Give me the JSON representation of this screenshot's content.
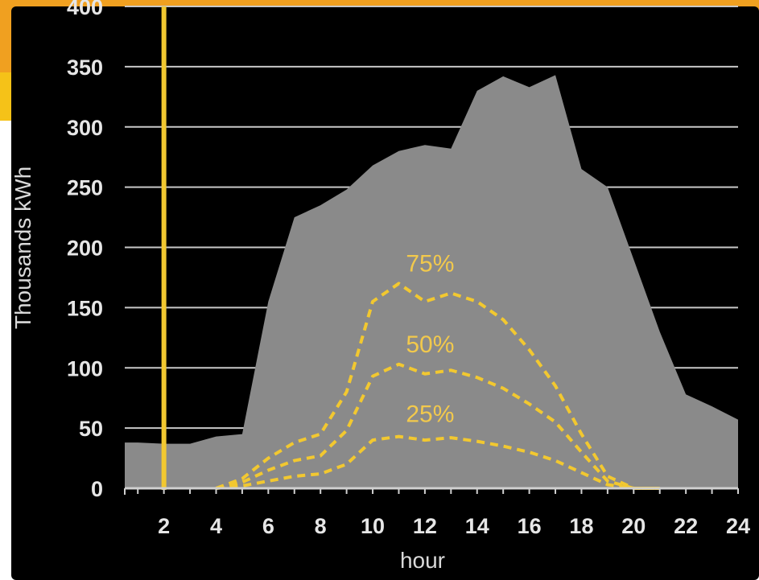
{
  "colors": {
    "background": "#000000",
    "area_fill": "#8a8a8a",
    "gridline": "#c8c8c8",
    "accent": "#f2c830",
    "corner_orange": "#f0a020"
  },
  "chart_data": {
    "type": "area",
    "title": "",
    "xlabel": "hour",
    "ylabel": "Thousands kWh",
    "xlim": [
      0.5,
      24
    ],
    "ylim": [
      0,
      400
    ],
    "x_ticks": [
      2,
      4,
      6,
      8,
      10,
      12,
      14,
      16,
      18,
      20,
      22,
      24
    ],
    "y_ticks": [
      0,
      50,
      100,
      150,
      200,
      250,
      300,
      350,
      400
    ],
    "grid": true,
    "vertical_marker_x": 2,
    "series": [
      {
        "kind": "area",
        "x": [
          0.5,
          1,
          2,
          3,
          4,
          5,
          6,
          7,
          8,
          9,
          10,
          11,
          12,
          13,
          14,
          15,
          16,
          17,
          18,
          19,
          20,
          21,
          22,
          23,
          24
        ],
        "values": [
          38,
          38,
          37,
          37,
          43,
          45,
          155,
          225,
          235,
          248,
          268,
          280,
          285,
          282,
          330,
          342,
          333,
          343,
          265,
          250,
          190,
          130,
          78,
          68,
          57
        ]
      },
      {
        "kind": "dashed",
        "x": [
          4,
          5,
          6,
          7,
          8,
          9,
          10,
          11,
          12,
          13,
          14,
          15,
          16,
          17,
          18,
          19,
          20,
          21
        ],
        "values": [
          0,
          8,
          25,
          38,
          45,
          80,
          155,
          170,
          155,
          162,
          155,
          140,
          115,
          85,
          45,
          10,
          0,
          0
        ]
      },
      {
        "kind": "dashed",
        "x": [
          4,
          5,
          6,
          7,
          8,
          9,
          10,
          11,
          12,
          13,
          14,
          15,
          16,
          17,
          18,
          19,
          20,
          21
        ],
        "values": [
          0,
          5,
          15,
          23,
          27,
          48,
          93,
          103,
          95,
          98,
          92,
          83,
          70,
          55,
          30,
          6,
          0,
          0
        ]
      },
      {
        "kind": "dashed",
        "x": [
          4,
          5,
          6,
          7,
          8,
          9,
          10,
          11,
          12,
          13,
          14,
          15,
          16,
          17,
          18,
          19,
          20,
          21
        ],
        "values": [
          0,
          2,
          6,
          10,
          12,
          20,
          40,
          43,
          40,
          42,
          39,
          35,
          30,
          23,
          13,
          3,
          0,
          0
        ]
      }
    ],
    "annotations": [
      {
        "text": "75%",
        "x": 12.2,
        "y": 180
      },
      {
        "text": "50%",
        "x": 12.2,
        "y": 113
      },
      {
        "text": "25%",
        "x": 12.2,
        "y": 55
      }
    ]
  }
}
